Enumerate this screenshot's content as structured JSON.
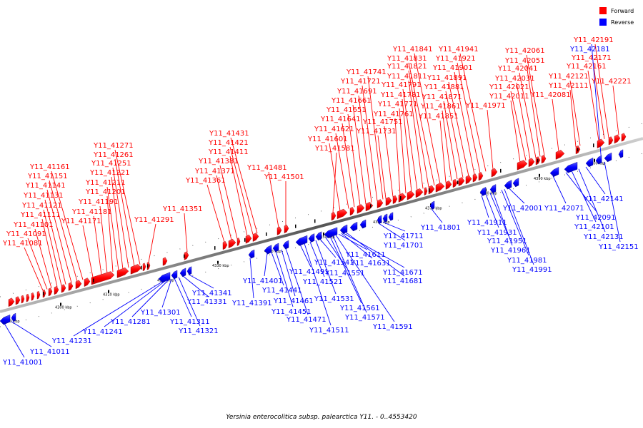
{
  "legend": {
    "forward": {
      "label": "Forward",
      "color": "#ff0000"
    },
    "reverse": {
      "label": "Reverse",
      "color": "#0000ff"
    }
  },
  "caption": "Yersinia enterocolitica subsp. palearctica Y11. - 0..4553420",
  "ticks": [
    "4290 kbp",
    "4300 kbp",
    "4310 kbp",
    "4320 kbp",
    "4330 kbp",
    "4340 kbp",
    "4350 kbp",
    "4360 kbp",
    "4370 kbp",
    "4380 kbp",
    "4390 kbp",
    "4400 kbp"
  ],
  "forward_labels": [
    "Y11_41081",
    "Y11_41091",
    "Y11_41101",
    "Y11_41111",
    "Y11_41121",
    "Y11_41131",
    "Y11_41141",
    "Y11_41151",
    "Y11_41161",
    "Y11_41171",
    "Y11_41181",
    "Y11_41191",
    "Y11_41201",
    "Y11_41211",
    "Y11_41221",
    "Y11_41251",
    "Y11_41261",
    "Y11_41271",
    "Y11_41291",
    "Y11_41351",
    "Y11_41361",
    "Y11_41371",
    "Y11_41381",
    "Y11_41411",
    "Y11_41421",
    "Y11_41431",
    "Y11_41481",
    "Y11_41501",
    "Y11_41581",
    "Y11_41601",
    "Y11_41621",
    "Y11_41641",
    "Y11_41651",
    "Y11_41661",
    "Y11_41691",
    "Y11_41721",
    "Y11_41741",
    "Y11_41731",
    "Y11_41751",
    "Y11_41761",
    "Y11_41771",
    "Y11_41781",
    "Y11_41791",
    "Y11_41811",
    "Y11_41821",
    "Y11_41831",
    "Y11_41841",
    "Y11_41851",
    "Y11_41861",
    "Y11_41871",
    "Y11_41881",
    "Y11_41891",
    "Y11_41901",
    "Y11_41921",
    "Y11_41941",
    "Y11_41971",
    "Y11_42011",
    "Y11_42021",
    "Y11_42031",
    "Y11_42041",
    "Y11_42051",
    "Y11_42061",
    "Y11_42081",
    "Y11_42111",
    "Y11_42121",
    "Y11_42161",
    "Y11_42171",
    "Y11_42191",
    "Y11_42221"
  ],
  "reverse_labels": [
    "Y11_41001",
    "Y11_41011",
    "Y11_41231",
    "Y11_41241",
    "Y11_41281",
    "Y11_41301",
    "Y11_41311",
    "Y11_41321",
    "Y11_41331",
    "Y11_41341",
    "Y11_41391",
    "Y11_41401",
    "Y11_41441",
    "Y11_41451",
    "Y11_41461",
    "Y11_41471",
    "Y11_41491",
    "Y11_41511",
    "Y11_41521",
    "Y11_41531",
    "Y11_41541",
    "Y11_41551",
    "Y11_41561",
    "Y11_41571",
    "Y11_41591",
    "Y11_41611",
    "Y11_41631",
    "Y11_41671",
    "Y11_41681",
    "Y11_41701",
    "Y11_41711",
    "Y11_41801",
    "Y11_41911",
    "Y11_41931",
    "Y11_41951",
    "Y11_41961",
    "Y11_41981",
    "Y11_41991",
    "Y11_42001",
    "Y11_42071",
    "Y11_42091",
    "Y11_42101",
    "Y11_42131",
    "Y11_42141",
    "Y11_42151",
    "Y11_42181"
  ]
}
